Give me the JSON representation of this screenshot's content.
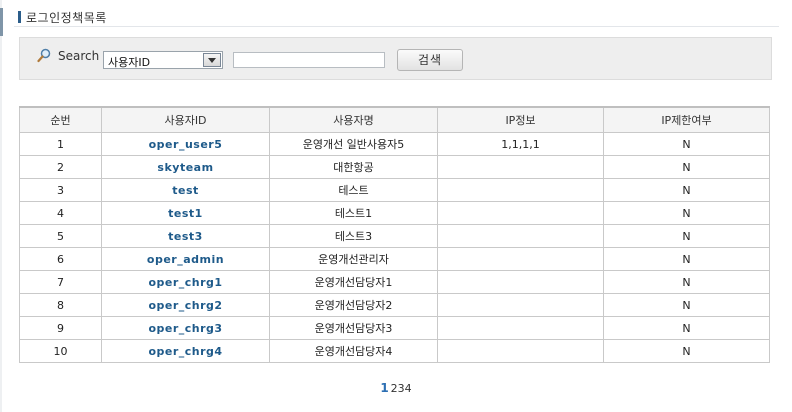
{
  "page": {
    "title": "로그인정책목록"
  },
  "search": {
    "label": "Search",
    "select_value": "사용자ID",
    "input_value": "",
    "button_label": "검색"
  },
  "table": {
    "headers": [
      "순번",
      "사용자ID",
      "사용자명",
      "IP정보",
      "IP제한여부"
    ],
    "rows": [
      {
        "no": "1",
        "user_id": "oper_user5",
        "user_name": "운영개선 일반사용자5",
        "ip": "1,1,1,1",
        "ip_restrict": "N"
      },
      {
        "no": "2",
        "user_id": "skyteam",
        "user_name": "대한항공",
        "ip": "",
        "ip_restrict": "N"
      },
      {
        "no": "3",
        "user_id": "test",
        "user_name": "테스트",
        "ip": "",
        "ip_restrict": "N"
      },
      {
        "no": "4",
        "user_id": "test1",
        "user_name": "테스트1",
        "ip": "",
        "ip_restrict": "N"
      },
      {
        "no": "5",
        "user_id": "test3",
        "user_name": "테스트3",
        "ip": "",
        "ip_restrict": "N"
      },
      {
        "no": "6",
        "user_id": "oper_admin",
        "user_name": "운영개선관리자",
        "ip": "",
        "ip_restrict": "N"
      },
      {
        "no": "7",
        "user_id": "oper_chrg1",
        "user_name": "운영개선담당자1",
        "ip": "",
        "ip_restrict": "N"
      },
      {
        "no": "8",
        "user_id": "oper_chrg2",
        "user_name": "운영개선담당자2",
        "ip": "",
        "ip_restrict": "N"
      },
      {
        "no": "9",
        "user_id": "oper_chrg3",
        "user_name": "운영개선담당자3",
        "ip": "",
        "ip_restrict": "N"
      },
      {
        "no": "10",
        "user_id": "oper_chrg4",
        "user_name": "운영개선담당자4",
        "ip": "",
        "ip_restrict": "N"
      }
    ]
  },
  "pagination": {
    "pages": [
      "1",
      "2",
      "3",
      "4"
    ],
    "current": "1"
  }
}
